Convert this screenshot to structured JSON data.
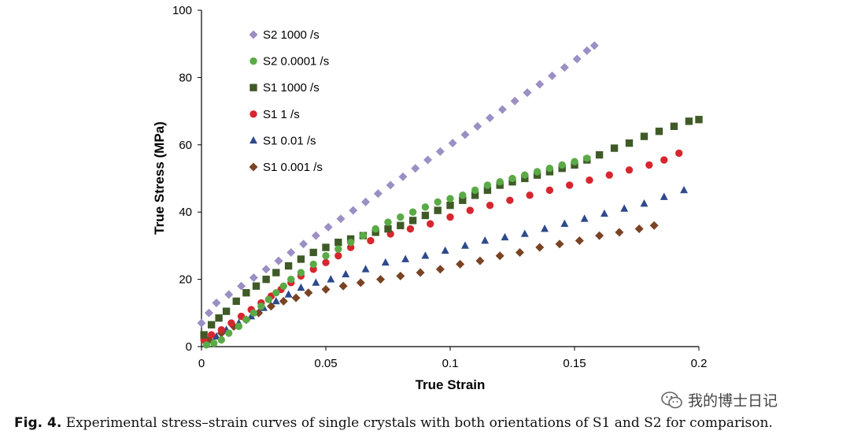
{
  "chart_data": {
    "type": "scatter",
    "title": "",
    "xlabel": "True Strain",
    "ylabel": "True Stress (MPa)",
    "xlim": [
      0,
      0.2
    ],
    "ylim": [
      0,
      100
    ],
    "xticks": [
      "0",
      "0.05",
      "0.1",
      "0.15",
      "0.2"
    ],
    "yticks": [
      "0",
      "20",
      "40",
      "60",
      "80",
      "100"
    ],
    "legend_position": "top-left",
    "series": [
      {
        "name": "S2 1000 /s",
        "marker": "diamond",
        "color": "#9b8fc4",
        "x": [
          0,
          0.003,
          0.006,
          0.011,
          0.016,
          0.021,
          0.026,
          0.031,
          0.036,
          0.041,
          0.046,
          0.051,
          0.056,
          0.061,
          0.066,
          0.071,
          0.076,
          0.081,
          0.086,
          0.091,
          0.096,
          0.101,
          0.106,
          0.111,
          0.116,
          0.121,
          0.126,
          0.131,
          0.136,
          0.141,
          0.146,
          0.151,
          0.155,
          0.158
        ],
        "y": [
          7,
          10,
          13,
          15.5,
          18,
          20.5,
          23,
          25.5,
          28,
          30.5,
          33,
          35.5,
          38,
          40.5,
          43,
          45.5,
          48,
          50.5,
          53,
          55.5,
          58,
          60.5,
          63,
          65.5,
          68,
          70.5,
          73,
          75.5,
          78,
          80.5,
          83,
          85.5,
          88,
          89.5
        ]
      },
      {
        "name": "S2 0.0001 /s",
        "marker": "circle",
        "color": "#5aab46",
        "x": [
          0.002,
          0.005,
          0.008,
          0.011,
          0.015,
          0.018,
          0.021,
          0.024,
          0.027,
          0.03,
          0.033,
          0.036,
          0.04,
          0.045,
          0.05,
          0.055,
          0.06,
          0.065,
          0.07,
          0.075,
          0.08,
          0.085,
          0.09,
          0.095,
          0.1,
          0.105,
          0.11,
          0.115,
          0.12,
          0.125,
          0.13,
          0.135,
          0.14,
          0.145,
          0.15,
          0.155
        ],
        "y": [
          0.5,
          1,
          2,
          4,
          6,
          8,
          10,
          12,
          14,
          16,
          18,
          20,
          22,
          24.5,
          27,
          29,
          31,
          33,
          35,
          37,
          38.5,
          40,
          41.5,
          43,
          44,
          45,
          46.5,
          48,
          49,
          50,
          51,
          52,
          53,
          54,
          55,
          56
        ]
      },
      {
        "name": "S1 1000 /s",
        "marker": "square",
        "color": "#3f5a26",
        "x": [
          0.001,
          0.004,
          0.007,
          0.01,
          0.014,
          0.018,
          0.022,
          0.026,
          0.03,
          0.035,
          0.04,
          0.045,
          0.05,
          0.055,
          0.06,
          0.065,
          0.07,
          0.075,
          0.08,
          0.085,
          0.09,
          0.095,
          0.1,
          0.105,
          0.11,
          0.115,
          0.12,
          0.125,
          0.13,
          0.135,
          0.14,
          0.145,
          0.15,
          0.155,
          0.16,
          0.166,
          0.172,
          0.178,
          0.184,
          0.19,
          0.196,
          0.2
        ],
        "y": [
          3.5,
          6.5,
          8.5,
          10.5,
          13.5,
          16,
          18,
          20,
          22,
          24,
          26,
          28,
          29.5,
          31,
          32,
          33,
          34,
          35,
          36,
          37.5,
          39,
          40.5,
          42,
          43.5,
          45,
          46.5,
          48,
          49,
          50,
          51,
          52,
          53,
          54,
          55.5,
          57,
          59,
          60.5,
          62.5,
          64,
          65.5,
          67,
          67.5
        ]
      },
      {
        "name": "S1 1 /s",
        "marker": "circle",
        "color": "#d7262e",
        "x": [
          0.001,
          0.004,
          0.008,
          0.012,
          0.016,
          0.02,
          0.024,
          0.028,
          0.032,
          0.036,
          0.04,
          0.045,
          0.05,
          0.055,
          0.06,
          0.068,
          0.076,
          0.084,
          0.092,
          0.1,
          0.108,
          0.116,
          0.124,
          0.132,
          0.14,
          0.148,
          0.156,
          0.164,
          0.172,
          0.18,
          0.186,
          0.192
        ],
        "y": [
          2,
          3.5,
          5,
          7,
          9,
          11,
          13,
          15,
          17,
          19,
          21,
          23,
          25,
          27,
          29.5,
          31.5,
          33.5,
          35,
          36.5,
          38.5,
          40.5,
          42,
          43.5,
          45,
          46.5,
          48,
          49.5,
          51,
          52.5,
          54,
          55.5,
          57.5
        ]
      },
      {
        "name": "S1 0.01 /s",
        "marker": "triangle",
        "color": "#2e4a8c",
        "x": [
          0.002,
          0.006,
          0.01,
          0.015,
          0.02,
          0.025,
          0.03,
          0.035,
          0.04,
          0.046,
          0.052,
          0.058,
          0.066,
          0.074,
          0.082,
          0.09,
          0.098,
          0.106,
          0.114,
          0.122,
          0.13,
          0.138,
          0.146,
          0.154,
          0.162,
          0.17,
          0.178,
          0.186,
          0.194
        ],
        "y": [
          1,
          3,
          5,
          7,
          9,
          11.5,
          13.5,
          15.5,
          17.5,
          19,
          20,
          21.5,
          23,
          25,
          26,
          27,
          28.5,
          30,
          31.5,
          32.5,
          33.5,
          35,
          36.5,
          38,
          39.5,
          41,
          42.5,
          44.5,
          46.5
        ]
      },
      {
        "name": "S1 0.001 /s",
        "marker": "diamond",
        "color": "#7a4324",
        "x": [
          0.003,
          0.008,
          0.013,
          0.018,
          0.023,
          0.028,
          0.033,
          0.038,
          0.043,
          0.05,
          0.057,
          0.064,
          0.072,
          0.08,
          0.088,
          0.096,
          0.104,
          0.112,
          0.12,
          0.128,
          0.136,
          0.144,
          0.152,
          0.16,
          0.168,
          0.176,
          0.182
        ],
        "y": [
          2,
          4,
          6,
          8,
          10,
          12,
          13.5,
          14.5,
          16,
          17,
          18,
          19,
          20,
          21,
          22,
          23,
          24.5,
          25.5,
          27,
          28,
          29.5,
          30.5,
          31.5,
          33,
          34,
          35,
          36
        ]
      }
    ]
  },
  "caption": {
    "label": "Fig. 4.",
    "text": "Experimental stress–strain curves of single crystals with both orientations of S1 and S2 for comparison."
  },
  "watermark": {
    "icon": "wechat-icon",
    "text": "我的博士日记"
  }
}
